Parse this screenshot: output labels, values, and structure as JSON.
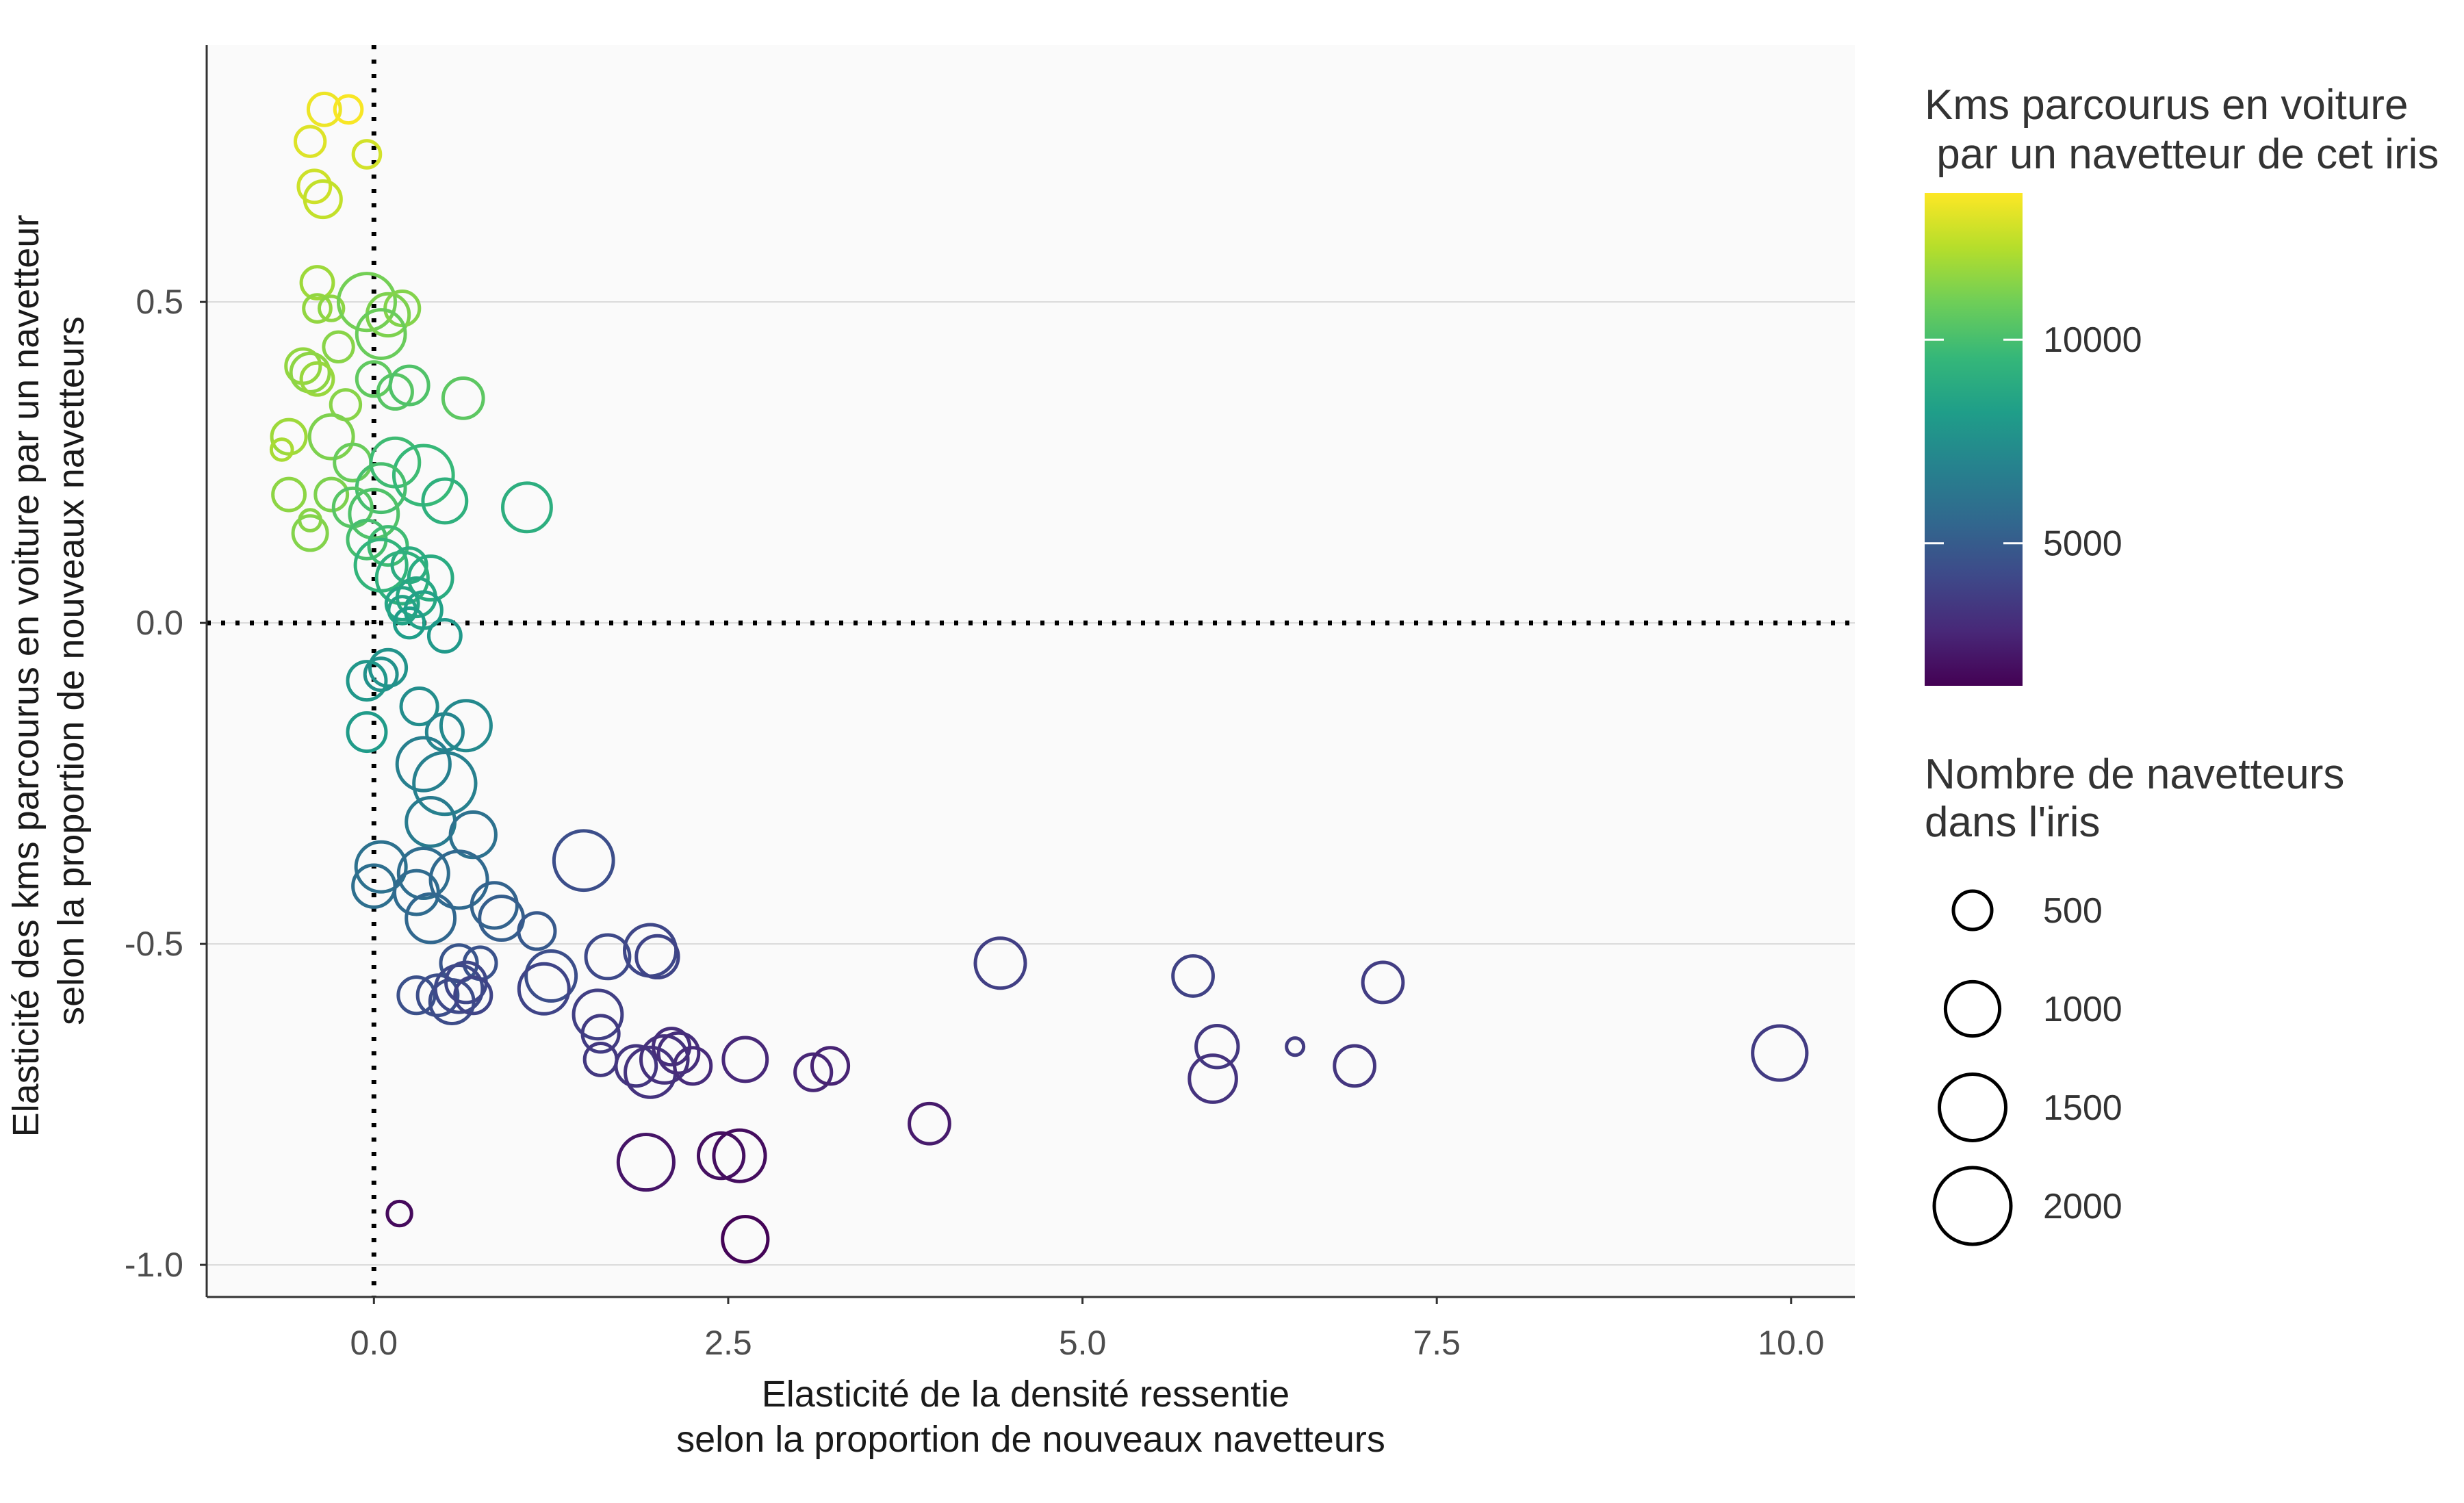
{
  "chart_data": {
    "type": "scatter",
    "xlabel": [
      "Elasticité de la densité ressentie",
      "selon la proportion de nouveaux navetteurs"
    ],
    "ylabel": [
      "Elasticité des kms parcourus en voiture par un navetteur",
      "selon la proportion de nouveaux navetteurs"
    ],
    "xlim": [
      -1.18,
      10.45
    ],
    "ylim": [
      -1.05,
      0.9
    ],
    "x_ticks": [
      0.0,
      2.5,
      5.0,
      7.5,
      10.0
    ],
    "x_tick_labels": [
      "0.0",
      "2.5",
      "5.0",
      "7.5",
      "10.0"
    ],
    "y_ticks": [
      -1.0,
      -0.5,
      0.0,
      0.5
    ],
    "y_tick_labels": [
      "-1.0",
      "-0.5",
      "0.0",
      "0.5"
    ],
    "reference_lines": {
      "x": 0,
      "y": 0,
      "style": "dotted"
    },
    "grid": "horizontal",
    "panel_background": "#fafafa",
    "color_legend": {
      "title": [
        "Kms parcourus en voiture",
        " par un navetteur de cet iris"
      ],
      "range": [
        1500,
        13600
      ],
      "ticks": [
        5000,
        10000
      ],
      "tick_labels": [
        "5000",
        "10000"
      ],
      "palette": [
        "#440154",
        "#482878",
        "#3e4989",
        "#31688e",
        "#26828e",
        "#1f9e89",
        "#35b779",
        "#6ece58",
        "#b5de2b",
        "#fde725"
      ]
    },
    "size_legend": {
      "title": [
        "Nombre de navetteurs",
        "dans l'iris"
      ],
      "values": [
        500,
        1000,
        1500,
        2000
      ],
      "labels": [
        "500",
        "1000",
        "1500",
        "2000"
      ]
    },
    "points": [
      {
        "x": -0.35,
        "y": 0.8,
        "n": 350,
        "km": 13300
      },
      {
        "x": -0.18,
        "y": 0.8,
        "n": 250,
        "km": 13500
      },
      {
        "x": -0.45,
        "y": 0.75,
        "n": 300,
        "km": 13000
      },
      {
        "x": -0.05,
        "y": 0.73,
        "n": 250,
        "km": 12800
      },
      {
        "x": -0.42,
        "y": 0.68,
        "n": 350,
        "km": 12700
      },
      {
        "x": -0.36,
        "y": 0.66,
        "n": 450,
        "km": 12500
      },
      {
        "x": -0.4,
        "y": 0.53,
        "n": 350,
        "km": 11800
      },
      {
        "x": -0.4,
        "y": 0.49,
        "n": 250,
        "km": 11600
      },
      {
        "x": -0.3,
        "y": 0.49,
        "n": 200,
        "km": 11500
      },
      {
        "x": -0.05,
        "y": 0.5,
        "n": 1100,
        "km": 11000
      },
      {
        "x": 0.1,
        "y": 0.48,
        "n": 600,
        "km": 11200
      },
      {
        "x": 0.2,
        "y": 0.49,
        "n": 400,
        "km": 11300
      },
      {
        "x": 0.05,
        "y": 0.45,
        "n": 800,
        "km": 10800
      },
      {
        "x": -0.25,
        "y": 0.43,
        "n": 300,
        "km": 11400
      },
      {
        "x": -0.5,
        "y": 0.4,
        "n": 400,
        "km": 11600
      },
      {
        "x": -0.45,
        "y": 0.39,
        "n": 500,
        "km": 11500
      },
      {
        "x": -0.4,
        "y": 0.38,
        "n": 350,
        "km": 11700
      },
      {
        "x": 0.0,
        "y": 0.38,
        "n": 400,
        "km": 10600
      },
      {
        "x": 0.15,
        "y": 0.36,
        "n": 400,
        "km": 10400
      },
      {
        "x": 0.25,
        "y": 0.37,
        "n": 500,
        "km": 10200
      },
      {
        "x": 0.63,
        "y": 0.35,
        "n": 550,
        "km": 10500
      },
      {
        "x": -0.2,
        "y": 0.34,
        "n": 300,
        "km": 11400
      },
      {
        "x": -0.6,
        "y": 0.29,
        "n": 400,
        "km": 11800
      },
      {
        "x": -0.3,
        "y": 0.29,
        "n": 650,
        "km": 11200
      },
      {
        "x": -0.65,
        "y": 0.27,
        "n": 150,
        "km": 12000
      },
      {
        "x": -0.15,
        "y": 0.25,
        "n": 450,
        "km": 10800
      },
      {
        "x": 0.15,
        "y": 0.25,
        "n": 800,
        "km": 9800
      },
      {
        "x": 0.35,
        "y": 0.23,
        "n": 1200,
        "km": 9600
      },
      {
        "x": 0.05,
        "y": 0.21,
        "n": 800,
        "km": 10000
      },
      {
        "x": -0.6,
        "y": 0.2,
        "n": 350,
        "km": 11500
      },
      {
        "x": -0.3,
        "y": 0.2,
        "n": 350,
        "km": 11200
      },
      {
        "x": -0.15,
        "y": 0.18,
        "n": 500,
        "km": 10400
      },
      {
        "x": 0.0,
        "y": 0.17,
        "n": 800,
        "km": 10200
      },
      {
        "x": 0.5,
        "y": 0.19,
        "n": 650,
        "km": 9200
      },
      {
        "x": 1.08,
        "y": 0.18,
        "n": 800,
        "km": 9100
      },
      {
        "x": -0.45,
        "y": 0.16,
        "n": 150,
        "km": 11400
      },
      {
        "x": -0.45,
        "y": 0.14,
        "n": 400,
        "km": 11300
      },
      {
        "x": -0.05,
        "y": 0.13,
        "n": 500,
        "km": 10000
      },
      {
        "x": 0.1,
        "y": 0.12,
        "n": 500,
        "km": 9800
      },
      {
        "x": 0.05,
        "y": 0.09,
        "n": 900,
        "km": 9400
      },
      {
        "x": 0.25,
        "y": 0.09,
        "n": 400,
        "km": 9000
      },
      {
        "x": 0.2,
        "y": 0.07,
        "n": 900,
        "km": 9200
      },
      {
        "x": 0.4,
        "y": 0.07,
        "n": 650,
        "km": 8900
      },
      {
        "x": 0.3,
        "y": 0.04,
        "n": 500,
        "km": 8700
      },
      {
        "x": 0.2,
        "y": 0.03,
        "n": 350,
        "km": 8600
      },
      {
        "x": 0.2,
        "y": 0.02,
        "n": 250,
        "km": 8500
      },
      {
        "x": 0.35,
        "y": 0.02,
        "n": 450,
        "km": 8400
      },
      {
        "x": 0.25,
        "y": 0.0,
        "n": 300,
        "km": 8200
      },
      {
        "x": 0.5,
        "y": -0.02,
        "n": 350,
        "km": 8000
      },
      {
        "x": 0.1,
        "y": -0.07,
        "n": 450,
        "km": 7700
      },
      {
        "x": 0.05,
        "y": -0.08,
        "n": 350,
        "km": 7600
      },
      {
        "x": -0.05,
        "y": -0.09,
        "n": 500,
        "km": 7900
      },
      {
        "x": 0.32,
        "y": -0.13,
        "n": 450,
        "km": 7400
      },
      {
        "x": -0.05,
        "y": -0.17,
        "n": 500,
        "km": 8100
      },
      {
        "x": 0.5,
        "y": -0.17,
        "n": 450,
        "km": 7000
      },
      {
        "x": 0.65,
        "y": -0.16,
        "n": 850,
        "km": 7200
      },
      {
        "x": 0.5,
        "y": -0.25,
        "n": 1300,
        "km": 6800
      },
      {
        "x": 0.35,
        "y": -0.22,
        "n": 950,
        "km": 6700
      },
      {
        "x": 0.4,
        "y": -0.31,
        "n": 800,
        "km": 6500
      },
      {
        "x": 0.7,
        "y": -0.33,
        "n": 700,
        "km": 6000
      },
      {
        "x": 0.05,
        "y": -0.38,
        "n": 850,
        "km": 6000
      },
      {
        "x": 0.0,
        "y": -0.41,
        "n": 600,
        "km": 5900
      },
      {
        "x": 0.35,
        "y": -0.39,
        "n": 850,
        "km": 5800
      },
      {
        "x": 0.3,
        "y": -0.42,
        "n": 650,
        "km": 5700
      },
      {
        "x": 0.6,
        "y": -0.4,
        "n": 1100,
        "km": 5600
      },
      {
        "x": 0.4,
        "y": -0.46,
        "n": 800,
        "km": 5500
      },
      {
        "x": 0.85,
        "y": -0.44,
        "n": 700,
        "km": 5300
      },
      {
        "x": 0.9,
        "y": -0.46,
        "n": 650,
        "km": 5100
      },
      {
        "x": 1.15,
        "y": -0.48,
        "n": 450,
        "km": 4900
      },
      {
        "x": 1.48,
        "y": -0.37,
        "n": 1200,
        "km": 4400
      },
      {
        "x": 0.6,
        "y": -0.53,
        "n": 450,
        "km": 4700
      },
      {
        "x": 0.75,
        "y": -0.53,
        "n": 350,
        "km": 4600
      },
      {
        "x": 1.25,
        "y": -0.55,
        "n": 850,
        "km": 4400
      },
      {
        "x": 1.65,
        "y": -0.52,
        "n": 650,
        "km": 4200
      },
      {
        "x": 1.95,
        "y": -0.51,
        "n": 900,
        "km": 4100
      },
      {
        "x": 2.0,
        "y": -0.52,
        "n": 600,
        "km": 4000
      },
      {
        "x": 0.3,
        "y": -0.58,
        "n": 450,
        "km": 4500
      },
      {
        "x": 0.45,
        "y": -0.58,
        "n": 550,
        "km": 4400
      },
      {
        "x": 0.55,
        "y": -0.59,
        "n": 650,
        "km": 4300
      },
      {
        "x": 0.6,
        "y": -0.57,
        "n": 750,
        "km": 4200
      },
      {
        "x": 0.65,
        "y": -0.56,
        "n": 550,
        "km": 4100
      },
      {
        "x": 0.7,
        "y": -0.58,
        "n": 450,
        "km": 4000
      },
      {
        "x": 1.2,
        "y": -0.57,
        "n": 850,
        "km": 4000
      },
      {
        "x": 1.58,
        "y": -0.61,
        "n": 800,
        "km": 3800
      },
      {
        "x": 1.6,
        "y": -0.64,
        "n": 450,
        "km": 3600
      },
      {
        "x": 1.6,
        "y": -0.68,
        "n": 350,
        "km": 3500
      },
      {
        "x": 1.85,
        "y": -0.69,
        "n": 550,
        "km": 3400
      },
      {
        "x": 1.95,
        "y": -0.7,
        "n": 850,
        "km": 3300
      },
      {
        "x": 2.05,
        "y": -0.68,
        "n": 750,
        "km": 3200
      },
      {
        "x": 2.1,
        "y": -0.66,
        "n": 450,
        "km": 3100
      },
      {
        "x": 2.15,
        "y": -0.67,
        "n": 550,
        "km": 3100
      },
      {
        "x": 2.25,
        "y": -0.69,
        "n": 450,
        "km": 3000
      },
      {
        "x": 2.62,
        "y": -0.68,
        "n": 650,
        "km": 2900
      },
      {
        "x": 3.1,
        "y": -0.7,
        "n": 450,
        "km": 2800
      },
      {
        "x": 3.22,
        "y": -0.69,
        "n": 450,
        "km": 2700
      },
      {
        "x": 3.92,
        "y": -0.78,
        "n": 550,
        "km": 2400
      },
      {
        "x": 4.42,
        "y": -0.53,
        "n": 850,
        "km": 3800
      },
      {
        "x": 5.78,
        "y": -0.55,
        "n": 550,
        "km": 3900
      },
      {
        "x": 5.95,
        "y": -0.66,
        "n": 600,
        "km": 3500
      },
      {
        "x": 5.92,
        "y": -0.71,
        "n": 750,
        "km": 3300
      },
      {
        "x": 6.5,
        "y": -0.66,
        "n": 100,
        "km": 3600
      },
      {
        "x": 6.92,
        "y": -0.69,
        "n": 550,
        "km": 3400
      },
      {
        "x": 7.12,
        "y": -0.56,
        "n": 550,
        "km": 3700
      },
      {
        "x": 9.92,
        "y": -0.67,
        "n": 1000,
        "km": 3600
      },
      {
        "x": 1.92,
        "y": -0.84,
        "n": 1050,
        "km": 2200
      },
      {
        "x": 2.45,
        "y": -0.83,
        "n": 700,
        "km": 2000
      },
      {
        "x": 2.58,
        "y": -0.83,
        "n": 900,
        "km": 1900
      },
      {
        "x": 2.62,
        "y": -0.96,
        "n": 700,
        "km": 1600
      },
      {
        "x": 0.18,
        "y": -0.92,
        "n": 200,
        "km": 1800
      }
    ]
  }
}
